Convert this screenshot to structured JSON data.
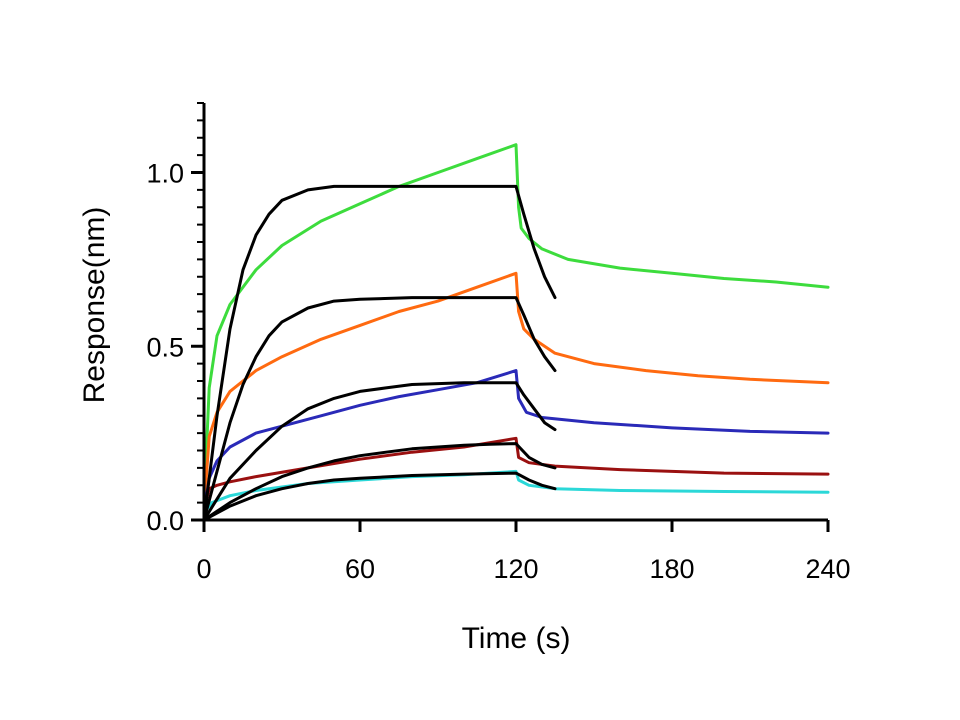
{
  "chart_data": {
    "type": "line",
    "xlabel": "Time (s)",
    "ylabel": "Response(nm)",
    "xlim": [
      0,
      240
    ],
    "ylim": [
      0,
      1.2
    ],
    "x_ticks": [
      0,
      60,
      120,
      180,
      240
    ],
    "x_tick_labels": [
      "0",
      "60",
      "120",
      "180",
      "240"
    ],
    "y_ticks": [
      0,
      0.5,
      1.0
    ],
    "y_tick_labels": [
      "0.0",
      "0.5",
      "1.0"
    ],
    "grid": false,
    "legend": "none",
    "series": [
      {
        "kind": "measured",
        "color": "#3ddc3d",
        "points": [
          [
            0,
            0.04
          ],
          [
            2,
            0.38
          ],
          [
            5,
            0.53
          ],
          [
            10,
            0.62
          ],
          [
            20,
            0.72
          ],
          [
            30,
            0.79
          ],
          [
            45,
            0.86
          ],
          [
            60,
            0.91
          ],
          [
            75,
            0.96
          ],
          [
            90,
            1.0
          ],
          [
            105,
            1.04
          ],
          [
            120,
            1.08
          ],
          [
            121,
            0.9
          ],
          [
            122,
            0.84
          ],
          [
            125,
            0.81
          ],
          [
            130,
            0.78
          ],
          [
            140,
            0.75
          ],
          [
            160,
            0.725
          ],
          [
            180,
            0.71
          ],
          [
            200,
            0.695
          ],
          [
            220,
            0.685
          ],
          [
            240,
            0.67
          ]
        ]
      },
      {
        "kind": "measured",
        "color": "#ff6a10",
        "points": [
          [
            0,
            0.03
          ],
          [
            2,
            0.24
          ],
          [
            5,
            0.31
          ],
          [
            10,
            0.37
          ],
          [
            20,
            0.43
          ],
          [
            30,
            0.47
          ],
          [
            45,
            0.52
          ],
          [
            60,
            0.56
          ],
          [
            75,
            0.6
          ],
          [
            90,
            0.63
          ],
          [
            105,
            0.67
          ],
          [
            120,
            0.71
          ],
          [
            121,
            0.6
          ],
          [
            123,
            0.55
          ],
          [
            127,
            0.52
          ],
          [
            135,
            0.48
          ],
          [
            150,
            0.45
          ],
          [
            170,
            0.43
          ],
          [
            190,
            0.415
          ],
          [
            210,
            0.405
          ],
          [
            240,
            0.395
          ]
        ]
      },
      {
        "kind": "measured",
        "color": "#2a2ab8",
        "points": [
          [
            0,
            0.02
          ],
          [
            2,
            0.12
          ],
          [
            5,
            0.17
          ],
          [
            10,
            0.21
          ],
          [
            20,
            0.25
          ],
          [
            30,
            0.27
          ],
          [
            45,
            0.3
          ],
          [
            60,
            0.33
          ],
          [
            75,
            0.355
          ],
          [
            90,
            0.375
          ],
          [
            105,
            0.395
          ],
          [
            120,
            0.43
          ],
          [
            121,
            0.35
          ],
          [
            124,
            0.31
          ],
          [
            130,
            0.295
          ],
          [
            150,
            0.28
          ],
          [
            180,
            0.265
          ],
          [
            210,
            0.255
          ],
          [
            240,
            0.25
          ]
        ]
      },
      {
        "kind": "measured",
        "color": "#9a1010",
        "points": [
          [
            0,
            0.03
          ],
          [
            2,
            0.09
          ],
          [
            5,
            0.1
          ],
          [
            10,
            0.11
          ],
          [
            20,
            0.125
          ],
          [
            40,
            0.15
          ],
          [
            60,
            0.175
          ],
          [
            80,
            0.195
          ],
          [
            100,
            0.21
          ],
          [
            120,
            0.235
          ],
          [
            121,
            0.18
          ],
          [
            125,
            0.165
          ],
          [
            135,
            0.155
          ],
          [
            160,
            0.145
          ],
          [
            200,
            0.135
          ],
          [
            240,
            0.132
          ]
        ]
      },
      {
        "kind": "measured",
        "color": "#2bd8d8",
        "points": [
          [
            0,
            0.02
          ],
          [
            3,
            0.05
          ],
          [
            10,
            0.07
          ],
          [
            20,
            0.085
          ],
          [
            40,
            0.105
          ],
          [
            60,
            0.115
          ],
          [
            80,
            0.125
          ],
          [
            100,
            0.13
          ],
          [
            120,
            0.14
          ],
          [
            121,
            0.115
          ],
          [
            125,
            0.1
          ],
          [
            135,
            0.09
          ],
          [
            160,
            0.085
          ],
          [
            200,
            0.082
          ],
          [
            240,
            0.08
          ]
        ]
      },
      {
        "kind": "fit",
        "color": "#000000",
        "points": [
          [
            0,
            0
          ],
          [
            5,
            0.3
          ],
          [
            10,
            0.55
          ],
          [
            15,
            0.72
          ],
          [
            20,
            0.82
          ],
          [
            25,
            0.88
          ],
          [
            30,
            0.92
          ],
          [
            40,
            0.95
          ],
          [
            50,
            0.96
          ],
          [
            60,
            0.96
          ],
          [
            80,
            0.96
          ],
          [
            100,
            0.96
          ],
          [
            120,
            0.96
          ],
          [
            123,
            0.88
          ],
          [
            127,
            0.78
          ],
          [
            131,
            0.7
          ],
          [
            135,
            0.64
          ]
        ]
      },
      {
        "kind": "fit",
        "color": "#000000",
        "points": [
          [
            0,
            0
          ],
          [
            5,
            0.14
          ],
          [
            10,
            0.28
          ],
          [
            15,
            0.39
          ],
          [
            20,
            0.47
          ],
          [
            25,
            0.53
          ],
          [
            30,
            0.57
          ],
          [
            40,
            0.61
          ],
          [
            50,
            0.63
          ],
          [
            60,
            0.635
          ],
          [
            80,
            0.64
          ],
          [
            100,
            0.64
          ],
          [
            120,
            0.64
          ],
          [
            123,
            0.59
          ],
          [
            127,
            0.52
          ],
          [
            131,
            0.47
          ],
          [
            135,
            0.43
          ]
        ]
      },
      {
        "kind": "fit",
        "color": "#000000",
        "points": [
          [
            0,
            0
          ],
          [
            5,
            0.06
          ],
          [
            10,
            0.12
          ],
          [
            20,
            0.2
          ],
          [
            30,
            0.27
          ],
          [
            40,
            0.32
          ],
          [
            50,
            0.35
          ],
          [
            60,
            0.37
          ],
          [
            70,
            0.38
          ],
          [
            80,
            0.39
          ],
          [
            100,
            0.395
          ],
          [
            120,
            0.395
          ],
          [
            123,
            0.36
          ],
          [
            127,
            0.32
          ],
          [
            131,
            0.28
          ],
          [
            135,
            0.26
          ]
        ]
      },
      {
        "kind": "fit",
        "color": "#000000",
        "points": [
          [
            0,
            0
          ],
          [
            5,
            0.025
          ],
          [
            10,
            0.05
          ],
          [
            20,
            0.09
          ],
          [
            30,
            0.125
          ],
          [
            40,
            0.15
          ],
          [
            50,
            0.17
          ],
          [
            60,
            0.185
          ],
          [
            70,
            0.195
          ],
          [
            80,
            0.205
          ],
          [
            90,
            0.21
          ],
          [
            100,
            0.215
          ],
          [
            110,
            0.218
          ],
          [
            120,
            0.22
          ],
          [
            125,
            0.18
          ],
          [
            130,
            0.16
          ],
          [
            135,
            0.15
          ]
        ]
      },
      {
        "kind": "fit",
        "color": "#000000",
        "points": [
          [
            0,
            0
          ],
          [
            5,
            0.02
          ],
          [
            10,
            0.04
          ],
          [
            20,
            0.07
          ],
          [
            30,
            0.09
          ],
          [
            40,
            0.105
          ],
          [
            50,
            0.115
          ],
          [
            60,
            0.12
          ],
          [
            80,
            0.128
          ],
          [
            100,
            0.132
          ],
          [
            120,
            0.135
          ],
          [
            125,
            0.115
          ],
          [
            130,
            0.1
          ],
          [
            135,
            0.09
          ]
        ]
      }
    ]
  }
}
